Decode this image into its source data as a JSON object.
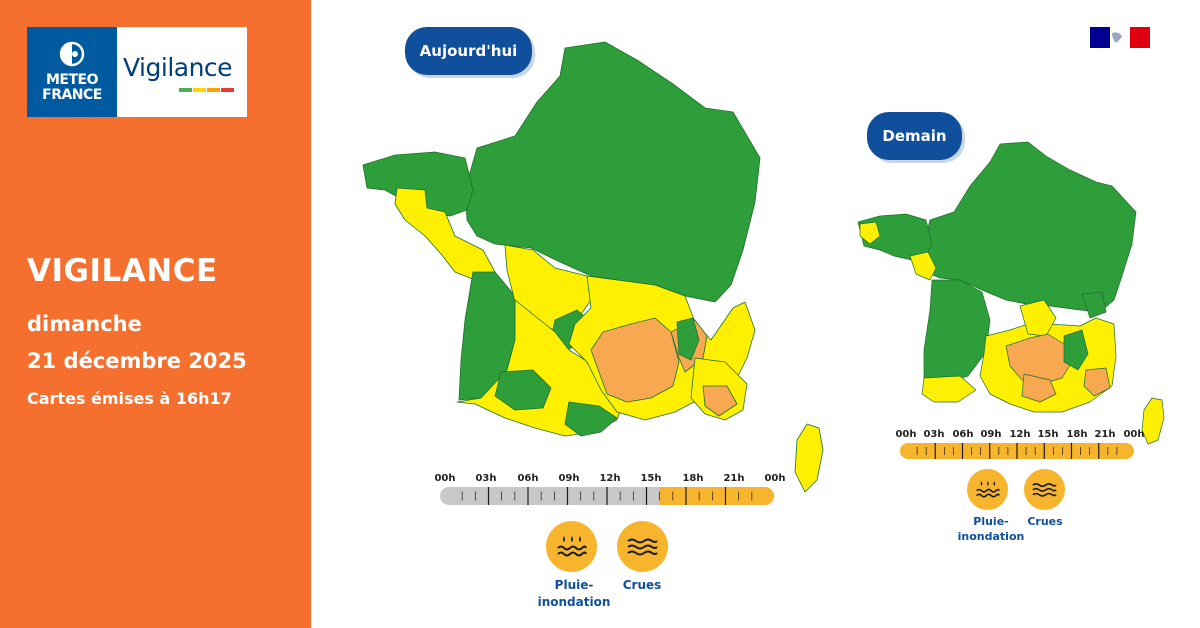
{
  "logo": {
    "brand_line1": "METEO",
    "brand_line2": "FRANCE",
    "product": "Vigilance",
    "level_colors": [
      "#4caf50",
      "#ffeb3b",
      "#ffa000",
      "#e53935"
    ]
  },
  "sidebar": {
    "title": "VIGILANCE",
    "day": "dimanche",
    "date": "21 décembre 2025",
    "issued": "Cartes émises à 16h17",
    "background": "#f56f2f"
  },
  "today": {
    "label": "Aujourd'hui",
    "timeline": {
      "ticks": [
        "00h",
        "03h",
        "06h",
        "09h",
        "12h",
        "15h",
        "18h",
        "21h",
        "00h"
      ],
      "orange_from_hour": 16
    },
    "hazards": [
      {
        "icon": "rain-flood-icon",
        "label_line1": "Pluie-",
        "label_line2": "inondation"
      },
      {
        "icon": "flood-waves-icon",
        "label_line1": "Crues",
        "label_line2": ""
      }
    ]
  },
  "tomorrow": {
    "label": "Demain",
    "timeline": {
      "ticks": [
        "00h",
        "03h",
        "06h",
        "09h",
        "12h",
        "15h",
        "18h",
        "21h",
        "00h"
      ],
      "orange_from_hour": 0
    },
    "hazards": [
      {
        "icon": "rain-flood-icon",
        "label_line1": "Pluie-",
        "label_line2": "inondation"
      },
      {
        "icon": "flood-waves-icon",
        "label_line1": "Crues",
        "label_line2": ""
      }
    ]
  },
  "colors": {
    "green": "#2e9e3a",
    "yellow": "#ffef00",
    "orange": "#f7a851",
    "brand_blue": "#0f4f9c",
    "timeline_grey": "#c8c8c8",
    "timeline_orange": "#f7b52d"
  }
}
